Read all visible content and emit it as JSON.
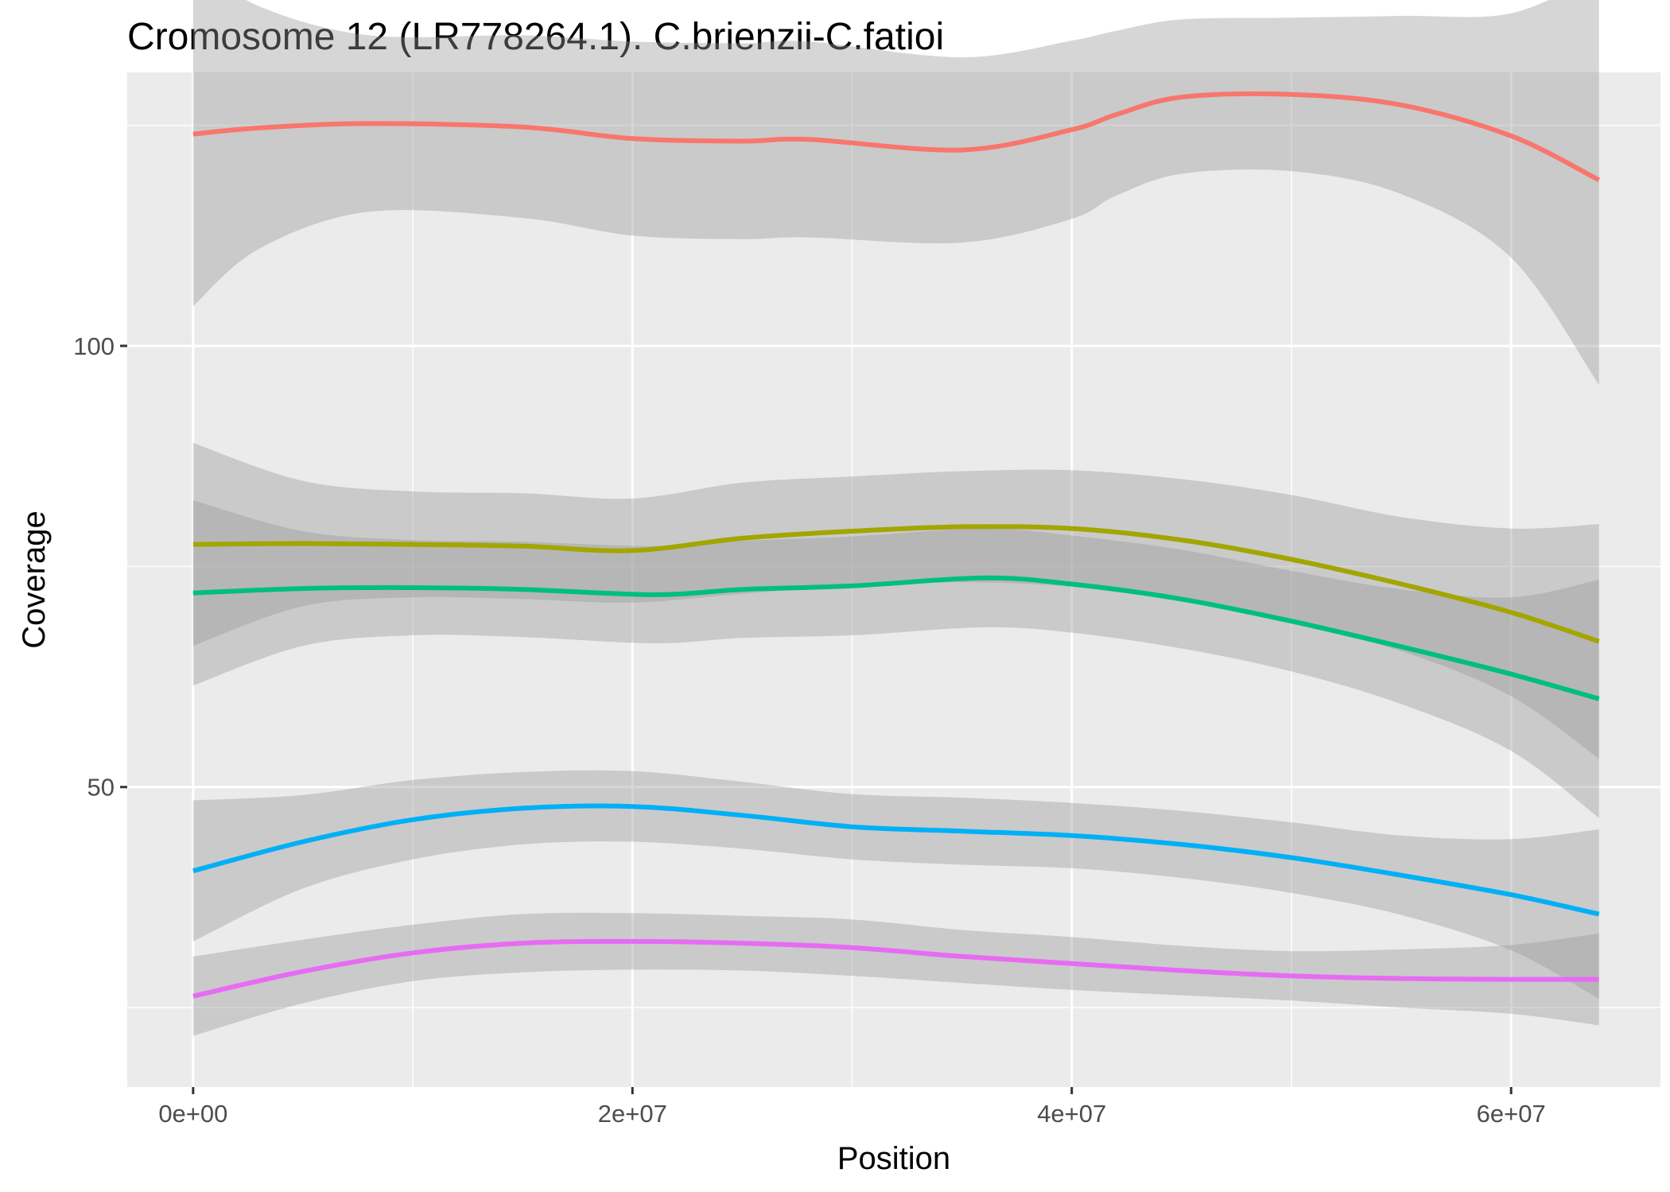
{
  "chart_data": {
    "type": "line",
    "title": "Cromosome 12 (LR778264.1). C.brienzii-C.fatioi",
    "xlabel": "Position",
    "ylabel": "Coverage",
    "xlim": [
      -3000000,
      66800000
    ],
    "ylim": [
      16,
      131
    ],
    "x_ticks": [
      0,
      20000000,
      40000000,
      60000000
    ],
    "x_tick_labels": [
      "0e+00",
      "2e+07",
      "4e+07",
      "6e+07"
    ],
    "y_ticks": [
      50,
      100
    ],
    "y_tick_labels": [
      "50",
      "100"
    ],
    "grid": true,
    "legend": "none",
    "background": "#EBEBEB",
    "ribbon_color": "#999999",
    "series": [
      {
        "color": "#F8766D",
        "x": [
          0,
          3000000,
          8000000,
          15000000,
          20000000,
          25000000,
          28000000,
          35000000,
          40000000,
          42000000,
          45000000,
          50000000,
          55000000,
          60000000,
          64000000
        ],
        "y": [
          124,
          124.7,
          125.2,
          124.8,
          123.5,
          123.2,
          123.4,
          122.2,
          124.5,
          126.2,
          128.2,
          128.5,
          127.3,
          123.8,
          118.8
        ],
        "lower": [
          104.5,
          111,
          115.2,
          114.5,
          112.5,
          112.1,
          112.3,
          111.7,
          114.4,
          117,
          119.5,
          119.8,
          117.2,
          110,
          95.6
        ],
        "upper": [
          143.5,
          138.5,
          135.2,
          135.2,
          134.5,
          134.3,
          134.5,
          132.7,
          134.6,
          135.7,
          137,
          137.2,
          137.4,
          137.7,
          142.1
        ]
      },
      {
        "color": "#A3A500",
        "x": [
          0,
          5000000,
          10000000,
          15000000,
          20000000,
          25000000,
          30000000,
          35000000,
          40000000,
          45000000,
          50000000,
          55000000,
          60000000,
          64000000
        ],
        "y": [
          77.5,
          77.6,
          77.5,
          77.3,
          76.8,
          78.2,
          79,
          79.5,
          79.3,
          78,
          75.8,
          73,
          69.8,
          66.5
        ],
        "lower": [
          66,
          70.5,
          71.5,
          71.3,
          70.9,
          71.9,
          72.8,
          73.2,
          72.7,
          71.1,
          68.5,
          65.4,
          60.3,
          53.2
        ],
        "upper": [
          89,
          84.7,
          83.5,
          83.3,
          82.7,
          84.5,
          85.2,
          85.8,
          85.9,
          84.9,
          83.1,
          80.6,
          79.3,
          79.8
        ]
      },
      {
        "color": "#00BF7D",
        "x": [
          0,
          5000000,
          10000000,
          15000000,
          21000000,
          25000000,
          30000000,
          36000000,
          40000000,
          45000000,
          50000000,
          55000000,
          60000000,
          64000000
        ],
        "y": [
          72,
          72.5,
          72.6,
          72.4,
          71.8,
          72.4,
          72.8,
          73.7,
          73,
          71.3,
          68.8,
          65.9,
          62.8,
          60
        ],
        "lower": [
          61.5,
          66,
          67.2,
          67,
          66.3,
          66.9,
          67.2,
          68.1,
          67.5,
          65.7,
          63.1,
          59.4,
          54.1,
          46.5
        ],
        "upper": [
          82.5,
          79,
          78,
          77.8,
          77.3,
          77.9,
          78.4,
          79.3,
          78.5,
          76.9,
          74.5,
          72.4,
          71.5,
          73.5
        ]
      },
      {
        "color": "#00B0F6",
        "x": [
          0,
          5000000,
          10000000,
          15000000,
          20000000,
          25000000,
          30000000,
          35000000,
          40000000,
          45000000,
          50000000,
          55000000,
          60000000,
          64000000
        ],
        "y": [
          40.5,
          43.8,
          46.3,
          47.6,
          47.8,
          46.8,
          45.5,
          45,
          44.5,
          43.5,
          42,
          40,
          37.8,
          35.6
        ],
        "lower": [
          32.5,
          38.5,
          41.8,
          43.5,
          43.8,
          43,
          41.8,
          41.2,
          40.8,
          39.7,
          38,
          35.5,
          31.5,
          26
        ],
        "upper": [
          48.5,
          49.1,
          50.8,
          51.7,
          51.8,
          50.6,
          49.2,
          48.8,
          48.2,
          47.3,
          46,
          44.5,
          44.1,
          45.2
        ]
      },
      {
        "color": "#E76BF3",
        "x": [
          0,
          5000000,
          10000000,
          15000000,
          20000000,
          25000000,
          30000000,
          35000000,
          40000000,
          45000000,
          50000000,
          55000000,
          60000000,
          64000000
        ],
        "y": [
          26.3,
          29.1,
          31.2,
          32.3,
          32.5,
          32.3,
          31.8,
          30.8,
          30,
          29.2,
          28.6,
          28.3,
          28.2,
          28.2
        ],
        "lower": [
          21.8,
          25.5,
          28,
          29,
          29.3,
          29.2,
          28.6,
          27.8,
          27,
          26.4,
          25.8,
          25,
          24.3,
          23
        ],
        "upper": [
          30.8,
          32.7,
          34.4,
          35.6,
          35.7,
          35.4,
          35,
          33.8,
          33,
          32,
          31.4,
          31.6,
          32.1,
          33.4
        ]
      }
    ]
  }
}
